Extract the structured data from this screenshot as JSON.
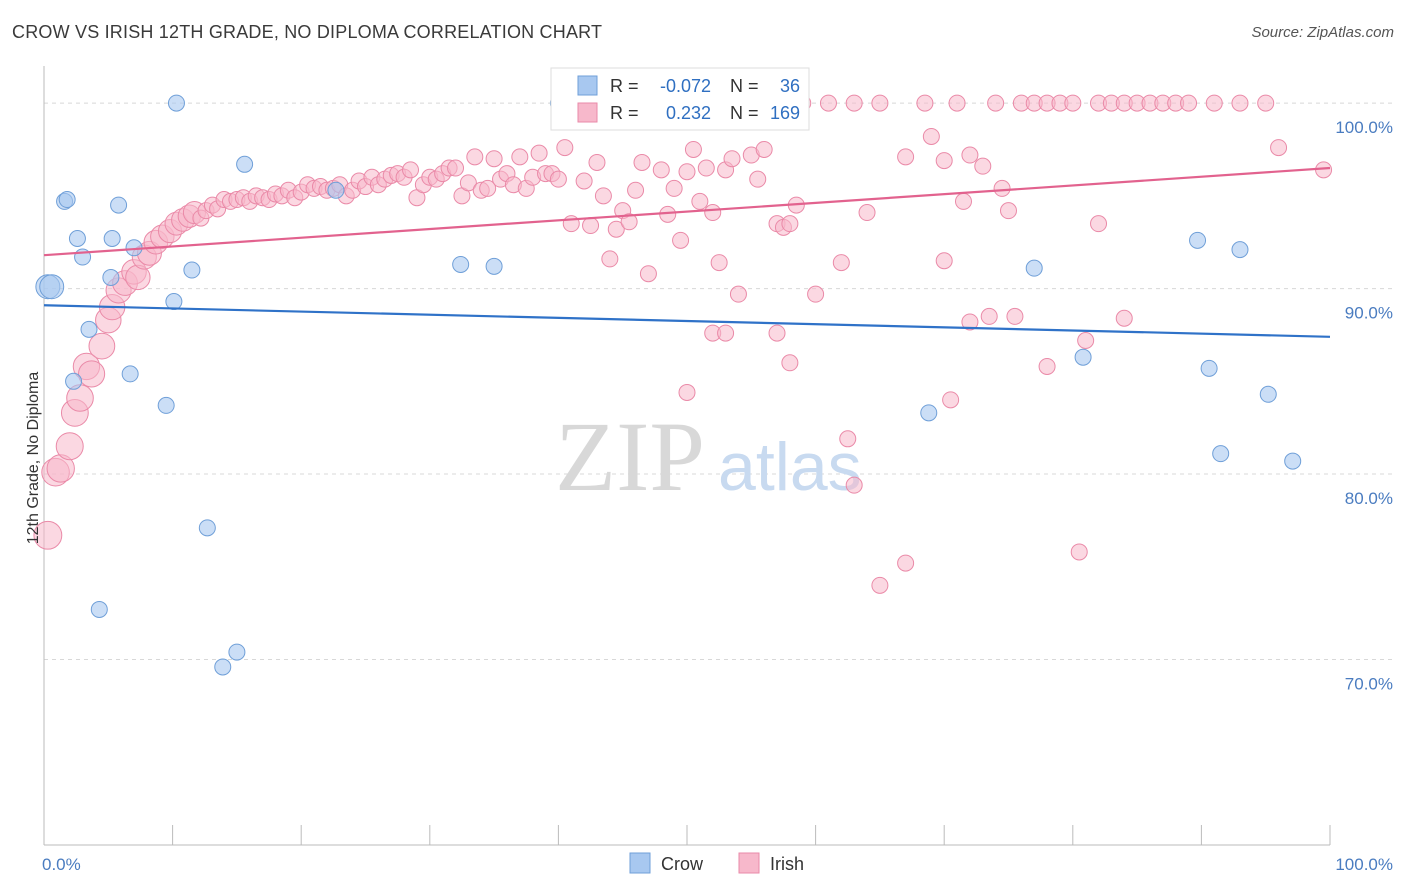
{
  "title": "CROW VS IRISH 12TH GRADE, NO DIPLOMA CORRELATION CHART",
  "source": "Source: ZipAtlas.com",
  "watermark": {
    "zip": "ZIP",
    "atlas": "atlas"
  },
  "colors": {
    "crow": "#a8c8f0",
    "crow_stroke": "#6f9fd8",
    "crow_line": "#2f72c8",
    "irish": "#f7b8cb",
    "irish_stroke": "#ea8aa8",
    "irish_line": "#e2628e",
    "tick_label": "#4a7cc0",
    "grid": "#d8d8d8"
  },
  "legend_box": {
    "rows": [
      {
        "series": "crow",
        "r_label": "R =",
        "r_value": "-0.072",
        "n_label": "N =",
        "n_value": "36"
      },
      {
        "series": "irish",
        "r_label": "R =",
        "r_value": "0.232",
        "n_label": "N =",
        "n_value": "169"
      }
    ]
  },
  "bottom_legend": [
    {
      "series": "crow",
      "label": "Crow"
    },
    {
      "series": "irish",
      "label": "Irish"
    }
  ],
  "chart_data": {
    "type": "scatter",
    "title": "CROW VS IRISH 12TH GRADE, NO DIPLOMA CORRELATION CHART",
    "xlabel": "",
    "ylabel": "12th Grade, No Diploma",
    "xlim": [
      0,
      100
    ],
    "ylim": [
      60,
      102
    ],
    "x_tick_labels": [
      "0.0%",
      "100.0%"
    ],
    "y_ticks": [
      100,
      90,
      80,
      70
    ],
    "y_tick_labels": [
      "100.0%",
      "90.0%",
      "80.0%",
      "70.0%"
    ],
    "grid": "horizontal dashed",
    "legend_position": "top-center",
    "series": [
      {
        "name": "Crow",
        "color": "#a8c8f0",
        "trend": {
          "x": [
            0,
            100
          ],
          "y": [
            89.1,
            87.4
          ]
        },
        "points": [
          [
            0.3,
            90.1
          ],
          [
            0.6,
            90.1
          ],
          [
            1.6,
            94.7
          ],
          [
            1.8,
            94.8
          ],
          [
            2.3,
            85.0
          ],
          [
            2.6,
            92.7
          ],
          [
            3.0,
            91.7
          ],
          [
            3.5,
            87.8
          ],
          [
            4.3,
            72.7
          ],
          [
            5.2,
            90.6
          ],
          [
            5.3,
            92.7
          ],
          [
            5.8,
            94.5
          ],
          [
            6.7,
            85.4
          ],
          [
            7.0,
            92.2
          ],
          [
            9.5,
            83.7
          ],
          [
            10.1,
            89.3
          ],
          [
            10.3,
            100.0
          ],
          [
            11.5,
            91.0
          ],
          [
            12.7,
            77.1
          ],
          [
            13.9,
            69.6
          ],
          [
            15.0,
            70.4
          ],
          [
            15.6,
            96.7
          ],
          [
            22.7,
            95.3
          ],
          [
            32.4,
            91.3
          ],
          [
            35.0,
            91.2
          ],
          [
            40.0,
            100.0
          ],
          [
            56.0,
            100.0
          ],
          [
            68.8,
            83.3
          ],
          [
            77.0,
            91.1
          ],
          [
            80.8,
            86.3
          ],
          [
            89.7,
            92.6
          ],
          [
            90.6,
            85.7
          ],
          [
            91.5,
            81.1
          ],
          [
            93.0,
            92.1
          ],
          [
            95.2,
            84.3
          ],
          [
            97.1,
            80.7
          ]
        ]
      },
      {
        "name": "Irish",
        "color": "#f7b8cb",
        "trend": {
          "x": [
            0,
            100
          ],
          "y": [
            91.8,
            96.5
          ]
        },
        "points": [
          [
            0.3,
            76.7
          ],
          [
            0.9,
            80.1
          ],
          [
            1.3,
            80.3
          ],
          [
            2.0,
            81.5
          ],
          [
            2.4,
            83.3
          ],
          [
            2.8,
            84.1
          ],
          [
            3.3,
            85.8
          ],
          [
            3.7,
            85.4
          ],
          [
            4.5,
            86.9
          ],
          [
            5.0,
            88.3
          ],
          [
            5.3,
            89.0
          ],
          [
            5.8,
            89.9
          ],
          [
            6.3,
            90.3
          ],
          [
            7.0,
            90.9
          ],
          [
            7.3,
            90.6
          ],
          [
            7.8,
            91.7
          ],
          [
            8.2,
            91.9
          ],
          [
            8.7,
            92.5
          ],
          [
            9.2,
            92.8
          ],
          [
            9.8,
            93.1
          ],
          [
            10.3,
            93.5
          ],
          [
            10.8,
            93.7
          ],
          [
            11.3,
            93.9
          ],
          [
            11.7,
            94.1
          ],
          [
            12.2,
            93.8
          ],
          [
            12.6,
            94.2
          ],
          [
            13.1,
            94.5
          ],
          [
            13.5,
            94.3
          ],
          [
            14.0,
            94.8
          ],
          [
            14.5,
            94.7
          ],
          [
            15.0,
            94.8
          ],
          [
            15.5,
            94.9
          ],
          [
            16.0,
            94.7
          ],
          [
            16.5,
            95.0
          ],
          [
            17.0,
            94.9
          ],
          [
            17.5,
            94.8
          ],
          [
            18.0,
            95.1
          ],
          [
            18.5,
            95.0
          ],
          [
            19.0,
            95.3
          ],
          [
            19.5,
            94.9
          ],
          [
            20.0,
            95.2
          ],
          [
            20.5,
            95.6
          ],
          [
            21.0,
            95.4
          ],
          [
            21.5,
            95.5
          ],
          [
            22.0,
            95.3
          ],
          [
            22.5,
            95.4
          ],
          [
            23.0,
            95.6
          ],
          [
            23.5,
            95.0
          ],
          [
            24.0,
            95.3
          ],
          [
            24.5,
            95.8
          ],
          [
            25.0,
            95.5
          ],
          [
            25.5,
            96.0
          ],
          [
            26.0,
            95.6
          ],
          [
            26.5,
            95.9
          ],
          [
            27.0,
            96.1
          ],
          [
            27.5,
            96.2
          ],
          [
            28.0,
            96.0
          ],
          [
            28.5,
            96.4
          ],
          [
            29.0,
            94.9
          ],
          [
            29.5,
            95.6
          ],
          [
            30.0,
            96.0
          ],
          [
            30.5,
            95.9
          ],
          [
            31.0,
            96.2
          ],
          [
            31.5,
            96.5
          ],
          [
            32.0,
            96.5
          ],
          [
            32.5,
            95.0
          ],
          [
            33.0,
            95.7
          ],
          [
            33.5,
            97.1
          ],
          [
            34.0,
            95.3
          ],
          [
            34.5,
            95.4
          ],
          [
            35.0,
            97.0
          ],
          [
            35.5,
            95.9
          ],
          [
            36.0,
            96.2
          ],
          [
            36.5,
            95.6
          ],
          [
            37.0,
            97.1
          ],
          [
            37.5,
            95.4
          ],
          [
            38.0,
            96.0
          ],
          [
            38.5,
            97.3
          ],
          [
            39.0,
            96.2
          ],
          [
            39.5,
            96.2
          ],
          [
            40.0,
            95.9
          ],
          [
            40.5,
            97.6
          ],
          [
            41.0,
            93.5
          ],
          [
            42.0,
            95.8
          ],
          [
            42.5,
            93.4
          ],
          [
            43.0,
            96.8
          ],
          [
            43.5,
            95.0
          ],
          [
            44.0,
            91.6
          ],
          [
            44.5,
            93.2
          ],
          [
            45.0,
            94.2
          ],
          [
            45.5,
            93.6
          ],
          [
            46.0,
            95.3
          ],
          [
            46.5,
            96.8
          ],
          [
            47.0,
            90.8
          ],
          [
            48.0,
            96.4
          ],
          [
            48.5,
            94.0
          ],
          [
            49.0,
            95.4
          ],
          [
            49.5,
            92.6
          ],
          [
            50.0,
            96.3
          ],
          [
            50.5,
            97.5
          ],
          [
            51.0,
            94.7
          ],
          [
            51.5,
            96.5
          ],
          [
            52.0,
            94.1
          ],
          [
            52.5,
            91.4
          ],
          [
            53.0,
            96.4
          ],
          [
            53.5,
            97.0
          ],
          [
            54.0,
            89.7
          ],
          [
            55.0,
            97.2
          ],
          [
            55.5,
            95.9
          ],
          [
            56.0,
            97.5
          ],
          [
            57.0,
            93.5
          ],
          [
            57.5,
            93.3
          ],
          [
            58.0,
            93.5
          ],
          [
            58.5,
            94.5
          ],
          [
            59.0,
            100.0
          ],
          [
            60.0,
            89.7
          ],
          [
            61.0,
            100.0
          ],
          [
            62.0,
            91.4
          ],
          [
            63.0,
            100.0
          ],
          [
            64.0,
            94.1
          ],
          [
            65.0,
            100.0
          ],
          [
            67.0,
            97.1
          ],
          [
            68.5,
            100.0
          ],
          [
            70.0,
            91.5
          ],
          [
            71.0,
            100.0
          ],
          [
            72.0,
            97.2
          ],
          [
            73.0,
            96.6
          ],
          [
            74.0,
            100.0
          ],
          [
            75.0,
            94.2
          ],
          [
            76.0,
            100.0
          ],
          [
            77.0,
            100.0
          ],
          [
            78.0,
            100.0
          ],
          [
            79.0,
            100.0
          ],
          [
            80.0,
            100.0
          ],
          [
            81.0,
            87.2
          ],
          [
            82.0,
            100.0
          ],
          [
            83.0,
            100.0
          ],
          [
            84.0,
            100.0
          ],
          [
            85.0,
            100.0
          ],
          [
            86.0,
            100.0
          ],
          [
            87.0,
            100.0
          ],
          [
            88.0,
            100.0
          ],
          [
            89.0,
            100.0
          ],
          [
            91.0,
            100.0
          ],
          [
            93.0,
            100.0
          ],
          [
            95.0,
            100.0
          ],
          [
            96.0,
            97.6
          ],
          [
            99.5,
            96.4
          ],
          [
            50.0,
            84.4
          ],
          [
            52.0,
            87.6
          ],
          [
            53.0,
            87.6
          ],
          [
            57.0,
            87.6
          ],
          [
            58.0,
            86.0
          ],
          [
            62.5,
            81.9
          ],
          [
            63.0,
            79.4
          ],
          [
            65.0,
            74.0
          ],
          [
            67.0,
            75.2
          ],
          [
            70.5,
            84.0
          ],
          [
            72.0,
            88.2
          ],
          [
            73.5,
            88.5
          ],
          [
            75.5,
            88.5
          ],
          [
            78.0,
            85.8
          ],
          [
            80.5,
            75.8
          ],
          [
            82.0,
            93.5
          ],
          [
            84.0,
            88.4
          ],
          [
            69.0,
            98.2
          ],
          [
            70.0,
            96.9
          ],
          [
            71.5,
            94.7
          ],
          [
            74.5,
            95.4
          ]
        ]
      }
    ]
  }
}
